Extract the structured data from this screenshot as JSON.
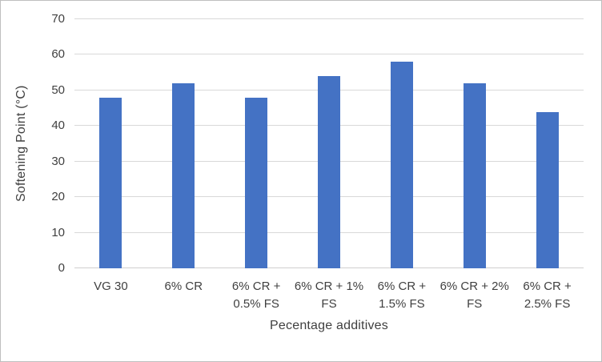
{
  "figure": {
    "background": "#FFFFFF",
    "border_color": "#BFBFBF"
  },
  "chart_data": {
    "type": "bar",
    "title": "",
    "categories": [
      "VG 30",
      "6% CR",
      "6% CR + 0.5% FS",
      "6% CR + 1% FS",
      "6% CR + 1.5% FS",
      "6% CR + 2% FS",
      "6% CR + 2.5% FS"
    ],
    "category_labels_wrapped": [
      "VG 30",
      "6% CR",
      "6% CR +\n0.5% FS",
      "6% CR + 1%\nFS",
      "6% CR +\n1.5% FS",
      "6% CR + 2%\nFS",
      "6% CR +\n2.5% FS"
    ],
    "values": [
      48,
      52,
      48,
      54,
      58,
      52,
      44
    ],
    "xlabel": "Pecentage additives",
    "ylabel": "Softening Point (°C)",
    "ylim": [
      0,
      70
    ],
    "yticks": [
      0,
      10,
      20,
      30,
      40,
      50,
      60,
      70
    ],
    "grid": "horizontal",
    "legend": "none",
    "colors": {
      "bar": "#4472C4",
      "gridline": "#D9D9D9",
      "axis_line": "#D0CECE",
      "text": "#404040"
    }
  }
}
